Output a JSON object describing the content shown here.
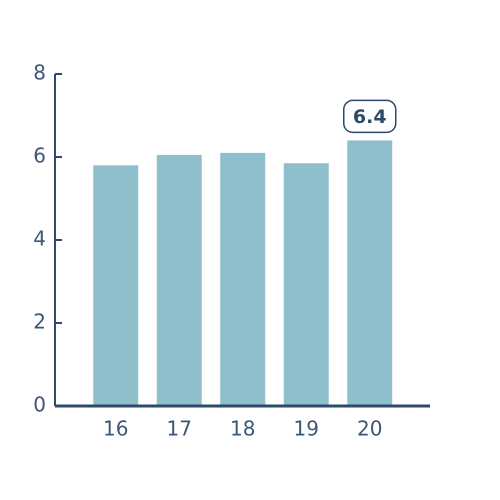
{
  "chart_data": {
    "type": "bar",
    "categories": [
      "16",
      "17",
      "18",
      "19",
      "20"
    ],
    "values": [
      5.8,
      6.05,
      6.1,
      5.85,
      6.4
    ],
    "value_labels": [
      null,
      null,
      null,
      null,
      "6.4"
    ],
    "color": "#8fbfca",
    "ylim": [
      0,
      8
    ],
    "yticks": [
      0,
      2,
      4,
      6,
      8
    ],
    "grid": false
  }
}
